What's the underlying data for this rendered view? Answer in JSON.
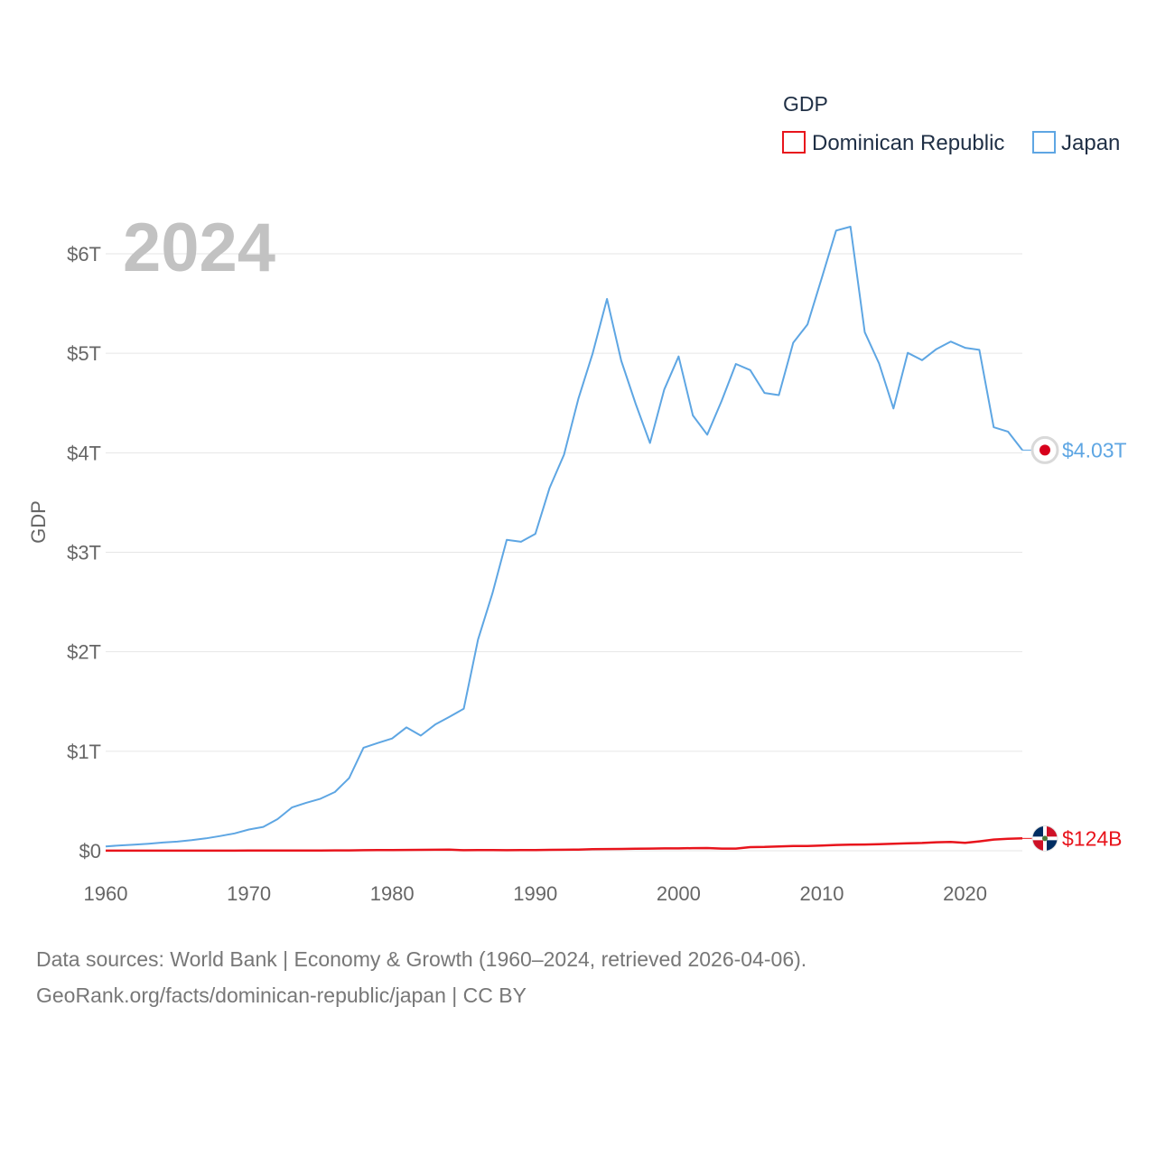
{
  "chart_data": {
    "type": "line",
    "title": "",
    "legend_title": "GDP",
    "legend_position": "top-right",
    "ylabel": "GDP",
    "xlabel": "",
    "current_year_label": "2024",
    "xlim": [
      1960,
      2024
    ],
    "ylim": [
      0,
      6
    ],
    "x_ticks": [
      1960,
      1970,
      1980,
      1990,
      2000,
      2010,
      2020
    ],
    "x_tick_labels": [
      "1960",
      "1970",
      "1980",
      "1990",
      "2000",
      "2010",
      "2020"
    ],
    "y_ticks": [
      0,
      1,
      2,
      3,
      4,
      5,
      6
    ],
    "y_tick_labels": [
      "$0",
      "$1T",
      "$2T",
      "$3T",
      "$4T",
      "$5T",
      "$6T"
    ],
    "unit": "trillion USD",
    "x": [
      1960,
      1961,
      1962,
      1963,
      1964,
      1965,
      1966,
      1967,
      1968,
      1969,
      1970,
      1971,
      1972,
      1973,
      1974,
      1975,
      1976,
      1977,
      1978,
      1979,
      1980,
      1981,
      1982,
      1983,
      1984,
      1985,
      1986,
      1987,
      1988,
      1989,
      1990,
      1991,
      1992,
      1993,
      1994,
      1995,
      1996,
      1997,
      1998,
      1999,
      2000,
      2001,
      2002,
      2003,
      2004,
      2005,
      2006,
      2007,
      2008,
      2009,
      2010,
      2011,
      2012,
      2013,
      2014,
      2015,
      2016,
      2017,
      2018,
      2019,
      2020,
      2021,
      2022,
      2023,
      2024
    ],
    "series": [
      {
        "name": "Dominican Republic",
        "color": "#e8141c",
        "end_label": "$124B",
        "flag": "dominican-republic-flag",
        "values": [
          0.001,
          0.001,
          0.001,
          0.001,
          0.001,
          0.001,
          0.001,
          0.001,
          0.001,
          0.001,
          0.002,
          0.002,
          0.002,
          0.002,
          0.003,
          0.003,
          0.004,
          0.004,
          0.005,
          0.006,
          0.007,
          0.008,
          0.009,
          0.01,
          0.011,
          0.005,
          0.006,
          0.006,
          0.005,
          0.006,
          0.007,
          0.009,
          0.01,
          0.012,
          0.015,
          0.017,
          0.018,
          0.021,
          0.022,
          0.024,
          0.024,
          0.026,
          0.027,
          0.022,
          0.022,
          0.036,
          0.038,
          0.044,
          0.048,
          0.048,
          0.053,
          0.058,
          0.061,
          0.063,
          0.066,
          0.071,
          0.075,
          0.078,
          0.085,
          0.089,
          0.079,
          0.094,
          0.113,
          0.121,
          0.124
        ]
      },
      {
        "name": "Japan",
        "color": "#5ea6e3",
        "end_label": "$4.03T",
        "flag": "japan-flag",
        "values": [
          0.044,
          0.054,
          0.062,
          0.071,
          0.083,
          0.092,
          0.106,
          0.124,
          0.148,
          0.174,
          0.213,
          0.24,
          0.318,
          0.435,
          0.482,
          0.523,
          0.59,
          0.731,
          1.036,
          1.083,
          1.128,
          1.24,
          1.157,
          1.268,
          1.346,
          1.427,
          2.122,
          2.585,
          3.125,
          3.105,
          3.185,
          3.648,
          3.98,
          4.542,
          4.998,
          5.546,
          4.924,
          4.493,
          4.098,
          4.636,
          4.968,
          4.375,
          4.182,
          4.52,
          4.893,
          4.831,
          4.601,
          4.579,
          5.106,
          5.289,
          5.759,
          6.233,
          6.272,
          5.212,
          4.897,
          4.445,
          5.004,
          4.931,
          5.041,
          5.118,
          5.055,
          5.034,
          4.256,
          4.213,
          4.027
        ]
      }
    ]
  },
  "footer": {
    "source_line": "Data sources: World Bank | Economy & Growth (1960–2024, retrieved 2026-04-06).",
    "url_line": "GeoRank.org/facts/dominican-republic/japan | CC BY"
  }
}
